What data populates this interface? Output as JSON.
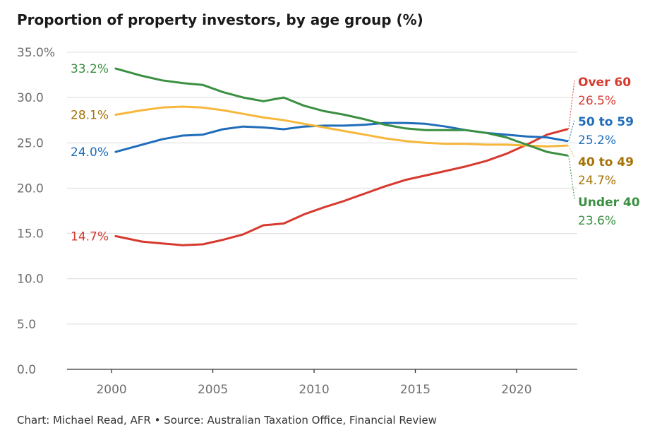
{
  "chart_data": {
    "type": "line",
    "title": "Proportion of property investors, by age group (%)",
    "xlabel": "",
    "ylabel": "",
    "xlim": [
      1997.8,
      2023
    ],
    "ylim": [
      0,
      35
    ],
    "x_ticks": [
      2000,
      2005,
      2010,
      2015,
      2020
    ],
    "x_tick_labels": [
      "2000",
      "2005",
      "2010",
      "2015",
      "2020"
    ],
    "y_ticks": [
      0,
      5,
      10,
      15,
      20,
      25,
      30,
      35
    ],
    "y_tick_labels": [
      "0.0",
      "5.0",
      "10.0",
      "15.0",
      "20.0",
      "25.0",
      "30.0",
      "35.0%"
    ],
    "grid": true,
    "x": [
      2000.2,
      2001.5,
      2002.5,
      2003.5,
      2004.5,
      2005.5,
      2006.5,
      2007.5,
      2008.5,
      2009.5,
      2010.5,
      2011.5,
      2012.5,
      2013.5,
      2014.5,
      2015.5,
      2016.5,
      2017.5,
      2018.5,
      2019.5,
      2020.5,
      2021.5,
      2022.5
    ],
    "series": [
      {
        "name": "Over 60",
        "color": "#d63a2f",
        "label_color": "#d63a2f",
        "start_label": "14.7%",
        "end_label": "26.5%",
        "values": [
          14.7,
          14.1,
          13.9,
          13.7,
          13.8,
          14.3,
          14.9,
          15.9,
          16.1,
          17.1,
          17.9,
          18.6,
          19.4,
          20.2,
          20.9,
          21.4,
          21.9,
          22.4,
          23.0,
          23.8,
          24.8,
          25.9,
          26.5
        ]
      },
      {
        "name": "50 to 59",
        "color": "#1f6dba",
        "label_color": "#1f6dba",
        "start_label": "24.0%",
        "end_label": "25.2%",
        "values": [
          24.0,
          24.8,
          25.4,
          25.8,
          25.9,
          26.5,
          26.8,
          26.7,
          26.5,
          26.8,
          26.9,
          26.9,
          27.0,
          27.2,
          27.2,
          27.1,
          26.8,
          26.4,
          26.1,
          25.9,
          25.7,
          25.6,
          25.2
        ]
      },
      {
        "name": "40 to 49",
        "color": "#f6b73c",
        "label_color": "#a77208",
        "start_label": "28.1%",
        "end_label": "24.7%",
        "values": [
          28.1,
          28.6,
          28.9,
          29.0,
          28.9,
          28.6,
          28.2,
          27.8,
          27.5,
          27.1,
          26.7,
          26.3,
          25.9,
          25.5,
          25.2,
          25.0,
          24.9,
          24.9,
          24.8,
          24.8,
          24.7,
          24.6,
          24.7
        ]
      },
      {
        "name": "Under 40",
        "color": "#3a8f41",
        "label_color": "#3a8f41",
        "start_label": "33.2%",
        "end_label": "23.6%",
        "values": [
          33.2,
          32.4,
          31.9,
          31.6,
          31.4,
          30.6,
          30.0,
          29.6,
          30.0,
          29.1,
          28.5,
          28.1,
          27.6,
          27.0,
          26.6,
          26.4,
          26.4,
          26.4,
          26.1,
          25.6,
          24.8,
          24.0,
          23.6
        ]
      }
    ]
  },
  "footer": {
    "credit": "Chart: Michael Read, AFR • Source: Australian Taxation Office, Financial Review"
  }
}
